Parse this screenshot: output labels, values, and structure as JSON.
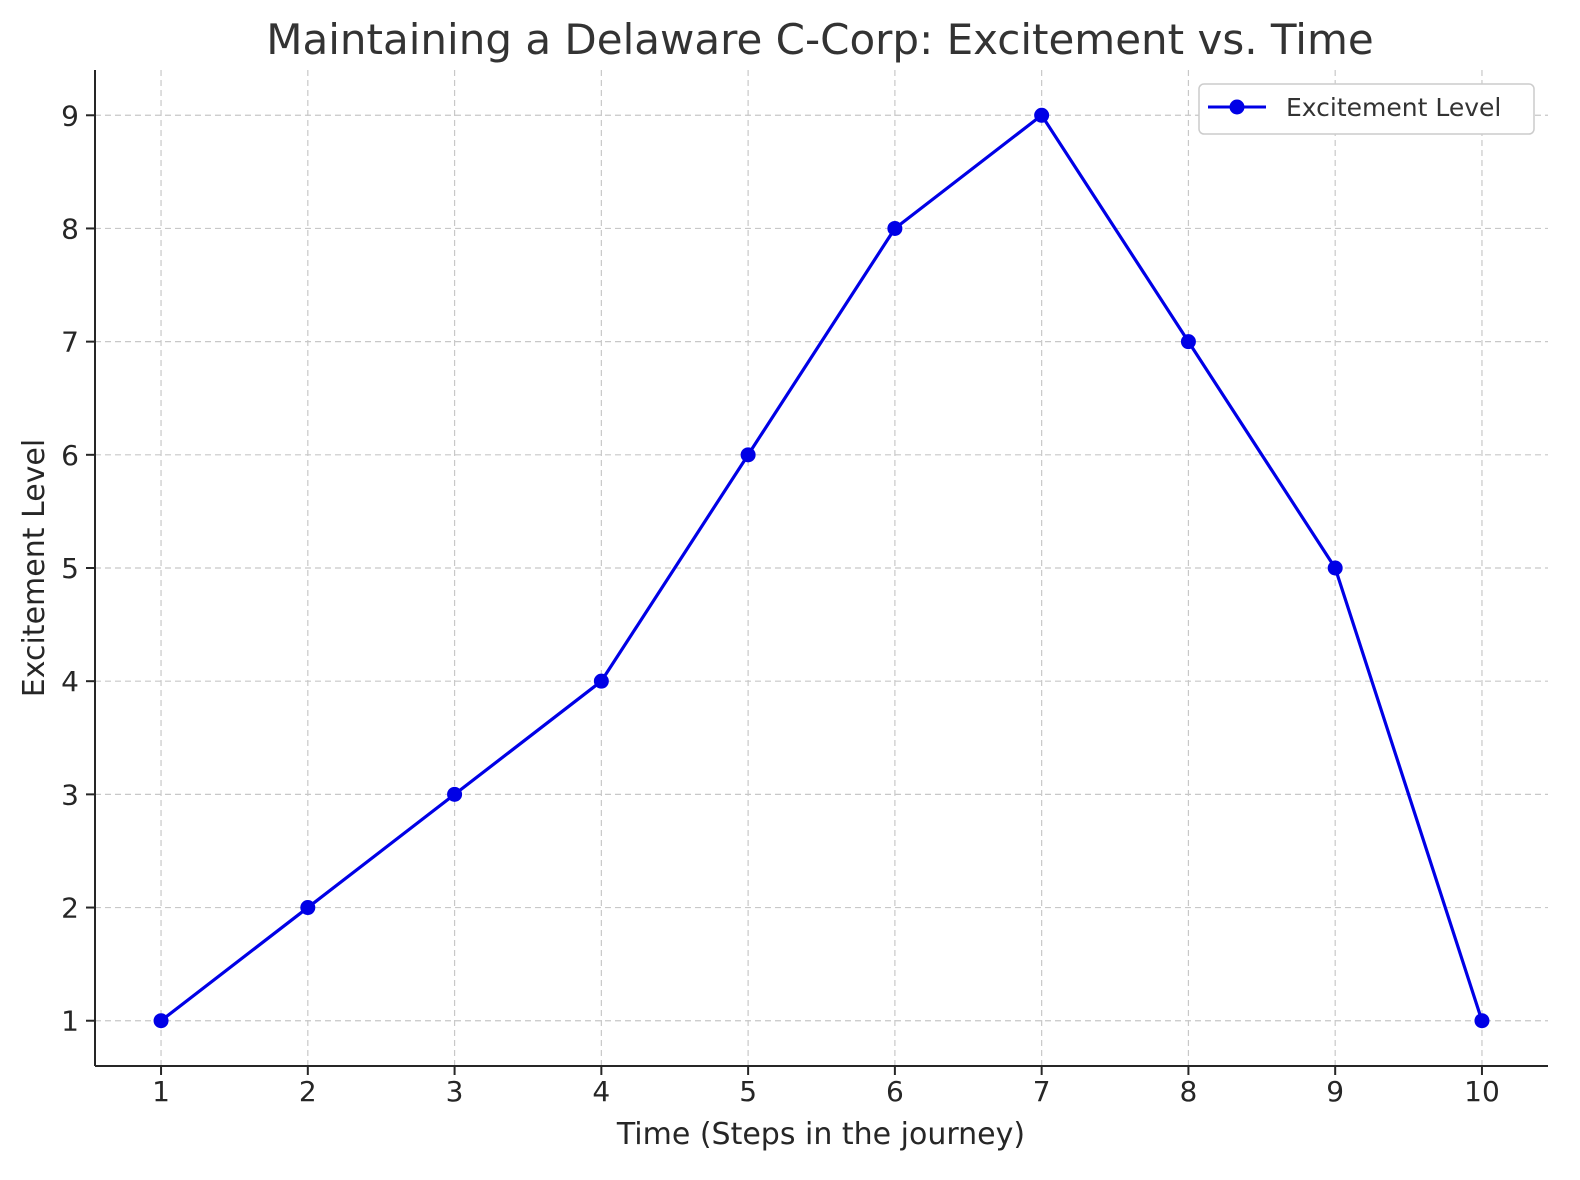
{
  "chart_data": {
    "type": "line",
    "title": "Maintaining a Delaware C-Corp: Excitement vs. Time",
    "xlabel": "Time (Steps in the journey)",
    "ylabel": "Excitement Level",
    "x": [
      1,
      2,
      3,
      4,
      5,
      6,
      7,
      8,
      9,
      10
    ],
    "series": [
      {
        "name": "Excitement Level",
        "color": "#0000e6",
        "marker": "circle",
        "values": [
          1,
          2,
          3,
          4,
          6,
          8,
          9,
          7,
          5,
          1
        ]
      }
    ],
    "xticks": [
      "1",
      "2",
      "3",
      "4",
      "5",
      "6",
      "7",
      "8",
      "9",
      "10"
    ],
    "yticks": [
      "1",
      "2",
      "3",
      "4",
      "5",
      "6",
      "7",
      "8",
      "9"
    ],
    "xlim": [
      0.55,
      10.45
    ],
    "ylim": [
      0.6,
      9.4
    ],
    "grid": true,
    "legend_position": "top-right"
  }
}
